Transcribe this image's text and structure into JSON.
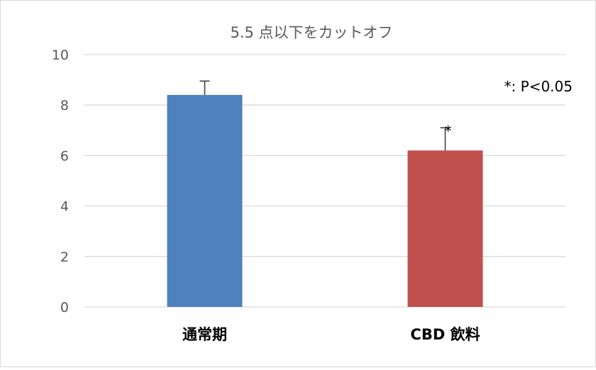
{
  "chart_data": {
    "type": "bar",
    "title": "5.5 点以下をカットオフ",
    "categories": [
      "通常期",
      "CBD 飲料"
    ],
    "values": [
      8.4,
      6.2
    ],
    "errors": [
      0.55,
      0.9
    ],
    "colors": [
      "#4f81bd",
      "#c0504d"
    ],
    "ylim": [
      0,
      10
    ],
    "yticks": [
      0,
      2,
      4,
      6,
      8,
      10
    ],
    "grid": true,
    "significance_marks": [
      "",
      "*"
    ],
    "annotation": "*: P<0.05",
    "xlabel": "",
    "ylabel": ""
  }
}
